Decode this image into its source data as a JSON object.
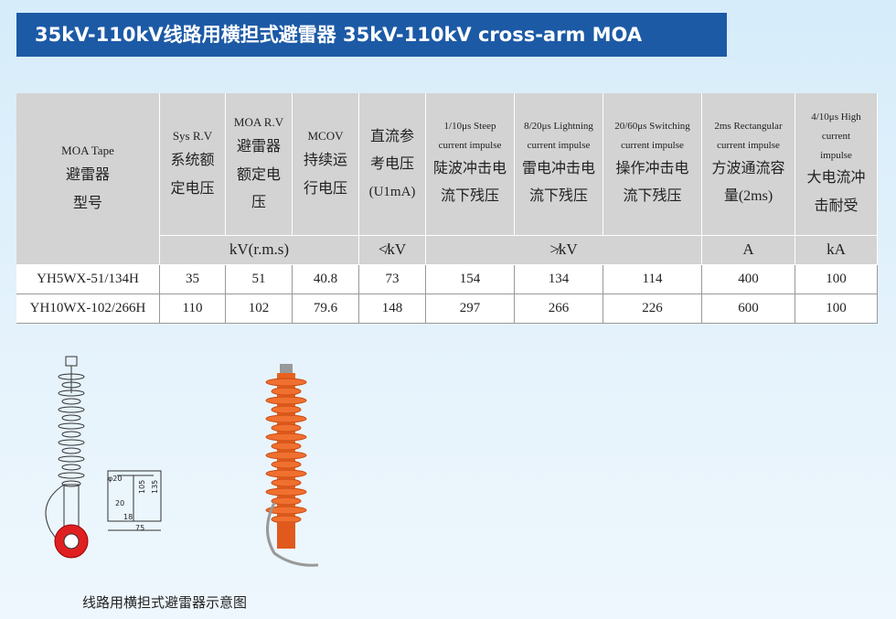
{
  "header": {
    "title": "35kV-110kV线路用横担式避雷器 35kV-110kV cross-arm MOA"
  },
  "table": {
    "head": [
      [
        "MOA Tape",
        "避雷器",
        "型号"
      ],
      [
        "Sys R.V",
        "系统额",
        "定电压"
      ],
      [
        "MOA R.V",
        "避雷器",
        "额定电",
        "压"
      ],
      [
        "MCOV",
        "持续运",
        "行电压"
      ],
      [
        "直流参",
        "考电压",
        "(U1mA)"
      ],
      [
        "1/10μs Steep",
        "current impulse",
        "陡波冲击电",
        "流下残压"
      ],
      [
        "8/20μs Lightning",
        "current impulse",
        "雷电冲击电",
        "流下残压"
      ],
      [
        "20/60μs Switching",
        "current impulse",
        "操作冲击电",
        "流下残压"
      ],
      [
        "2ms  Rectangular",
        "current impulse",
        "方波通流容",
        "量(2ms)"
      ],
      [
        "4/10μs High",
        "current",
        "impulse",
        "大电流冲",
        "击耐受"
      ]
    ],
    "units": [
      "kV(r.m.s)",
      "≮kV",
      "≯kV",
      "A",
      "kA"
    ],
    "rows": [
      [
        "YH5WX-51/134H",
        35,
        51,
        40.8,
        73,
        154,
        134,
        114,
        400,
        100
      ],
      [
        "YH10WX-102/266H",
        110,
        102,
        79.6,
        148,
        297,
        266,
        226,
        600,
        100
      ]
    ]
  },
  "figure": {
    "dims": [
      "φ20",
      "20",
      "18",
      "75",
      "105",
      "135"
    ],
    "caption": "线路用横担式避雷器示意图"
  }
}
